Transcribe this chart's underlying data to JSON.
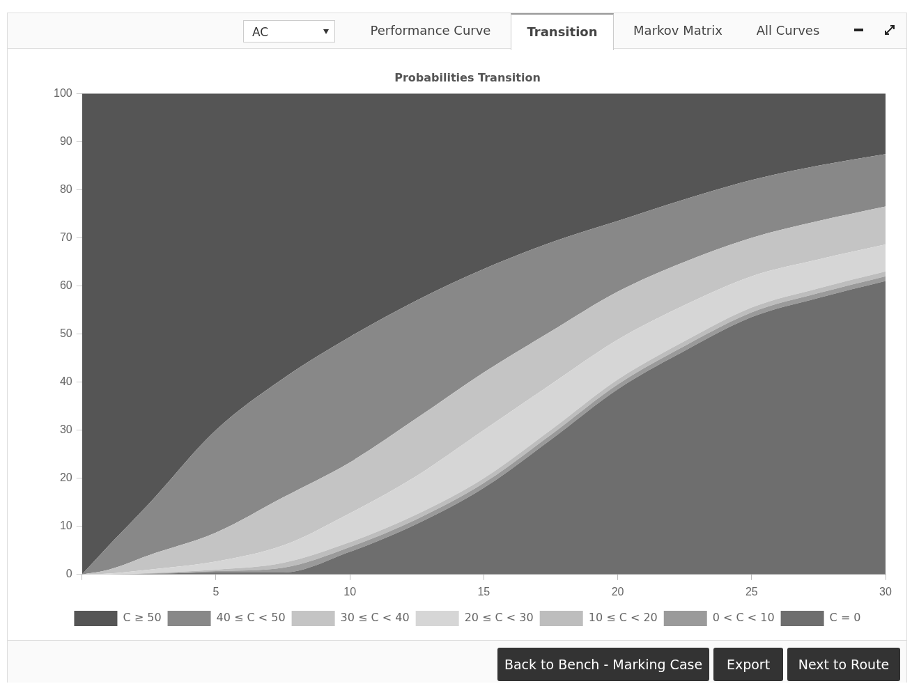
{
  "chart_data": {
    "type": "area",
    "title": "Probabilities Transition",
    "stacked": true,
    "legend": "bottom",
    "grid": false,
    "x": [
      0,
      1,
      2.5,
      5,
      7.5,
      10,
      12.5,
      15,
      17.5,
      20,
      22.5,
      25,
      27.5,
      30
    ],
    "xlim": [
      0,
      30
    ],
    "xticks": [
      {
        "value": 0,
        "label": null
      },
      5,
      10,
      15,
      20,
      25,
      30
    ],
    "ylim": [
      0,
      100
    ],
    "yticks": [
      0,
      10,
      20,
      30,
      40,
      50,
      60,
      70,
      80,
      90,
      100
    ],
    "series": [
      {
        "name": "C = 0",
        "color": "#6e6e6e",
        "values": [
          0,
          0,
          0.1,
          0.4,
          0.4,
          4.7,
          10.5,
          18,
          28,
          38.5,
          46.5,
          53.5,
          57.5,
          61
        ]
      },
      {
        "name": "0 < C < 10",
        "color": "#9a9a9a",
        "values": [
          0,
          0,
          0.1,
          0.3,
          1,
          1,
          1,
          1,
          1,
          1,
          1,
          1,
          1,
          1
        ]
      },
      {
        "name": "10 ≤ C < 20",
        "color": "#bdbdbd",
        "values": [
          0,
          0,
          0.1,
          0.3,
          1,
          1,
          1,
          1,
          1,
          1,
          1,
          1,
          1,
          1
        ]
      },
      {
        "name": "20 ≤ C < 30",
        "color": "#d6d6d6",
        "values": [
          0,
          0.2,
          0.7,
          1.7,
          3.6,
          6,
          8,
          10,
          9.5,
          8.3,
          7.5,
          6.5,
          6,
          5.6
        ]
      },
      {
        "name": "30 ≤ C < 40",
        "color": "#c4c4c4",
        "values": [
          0,
          0.8,
          3,
          6,
          10,
          10.6,
          12,
          12,
          11,
          10,
          9,
          8,
          8,
          7.9
        ]
      },
      {
        "name": "40 ≤ C < 50",
        "color": "#888888",
        "values": [
          0,
          5,
          10.7,
          21.3,
          24.7,
          26.1,
          24.5,
          21.5,
          18.5,
          14.7,
          13,
          12,
          11.5,
          10.9
        ]
      },
      {
        "name": "C ≥ 50",
        "color": "#555555",
        "values": [
          100,
          94,
          85.3,
          70,
          59.3,
          50.6,
          43,
          36.5,
          31,
          26.5,
          22,
          18,
          15,
          12.6
        ]
      }
    ],
    "annotations": [
      "AC",
      "Performance Curve",
      "Transition",
      "Markov Matrix",
      "All Curves",
      "Back to Bench - Marking Case",
      "Export",
      "Next to Route"
    ]
  }
}
